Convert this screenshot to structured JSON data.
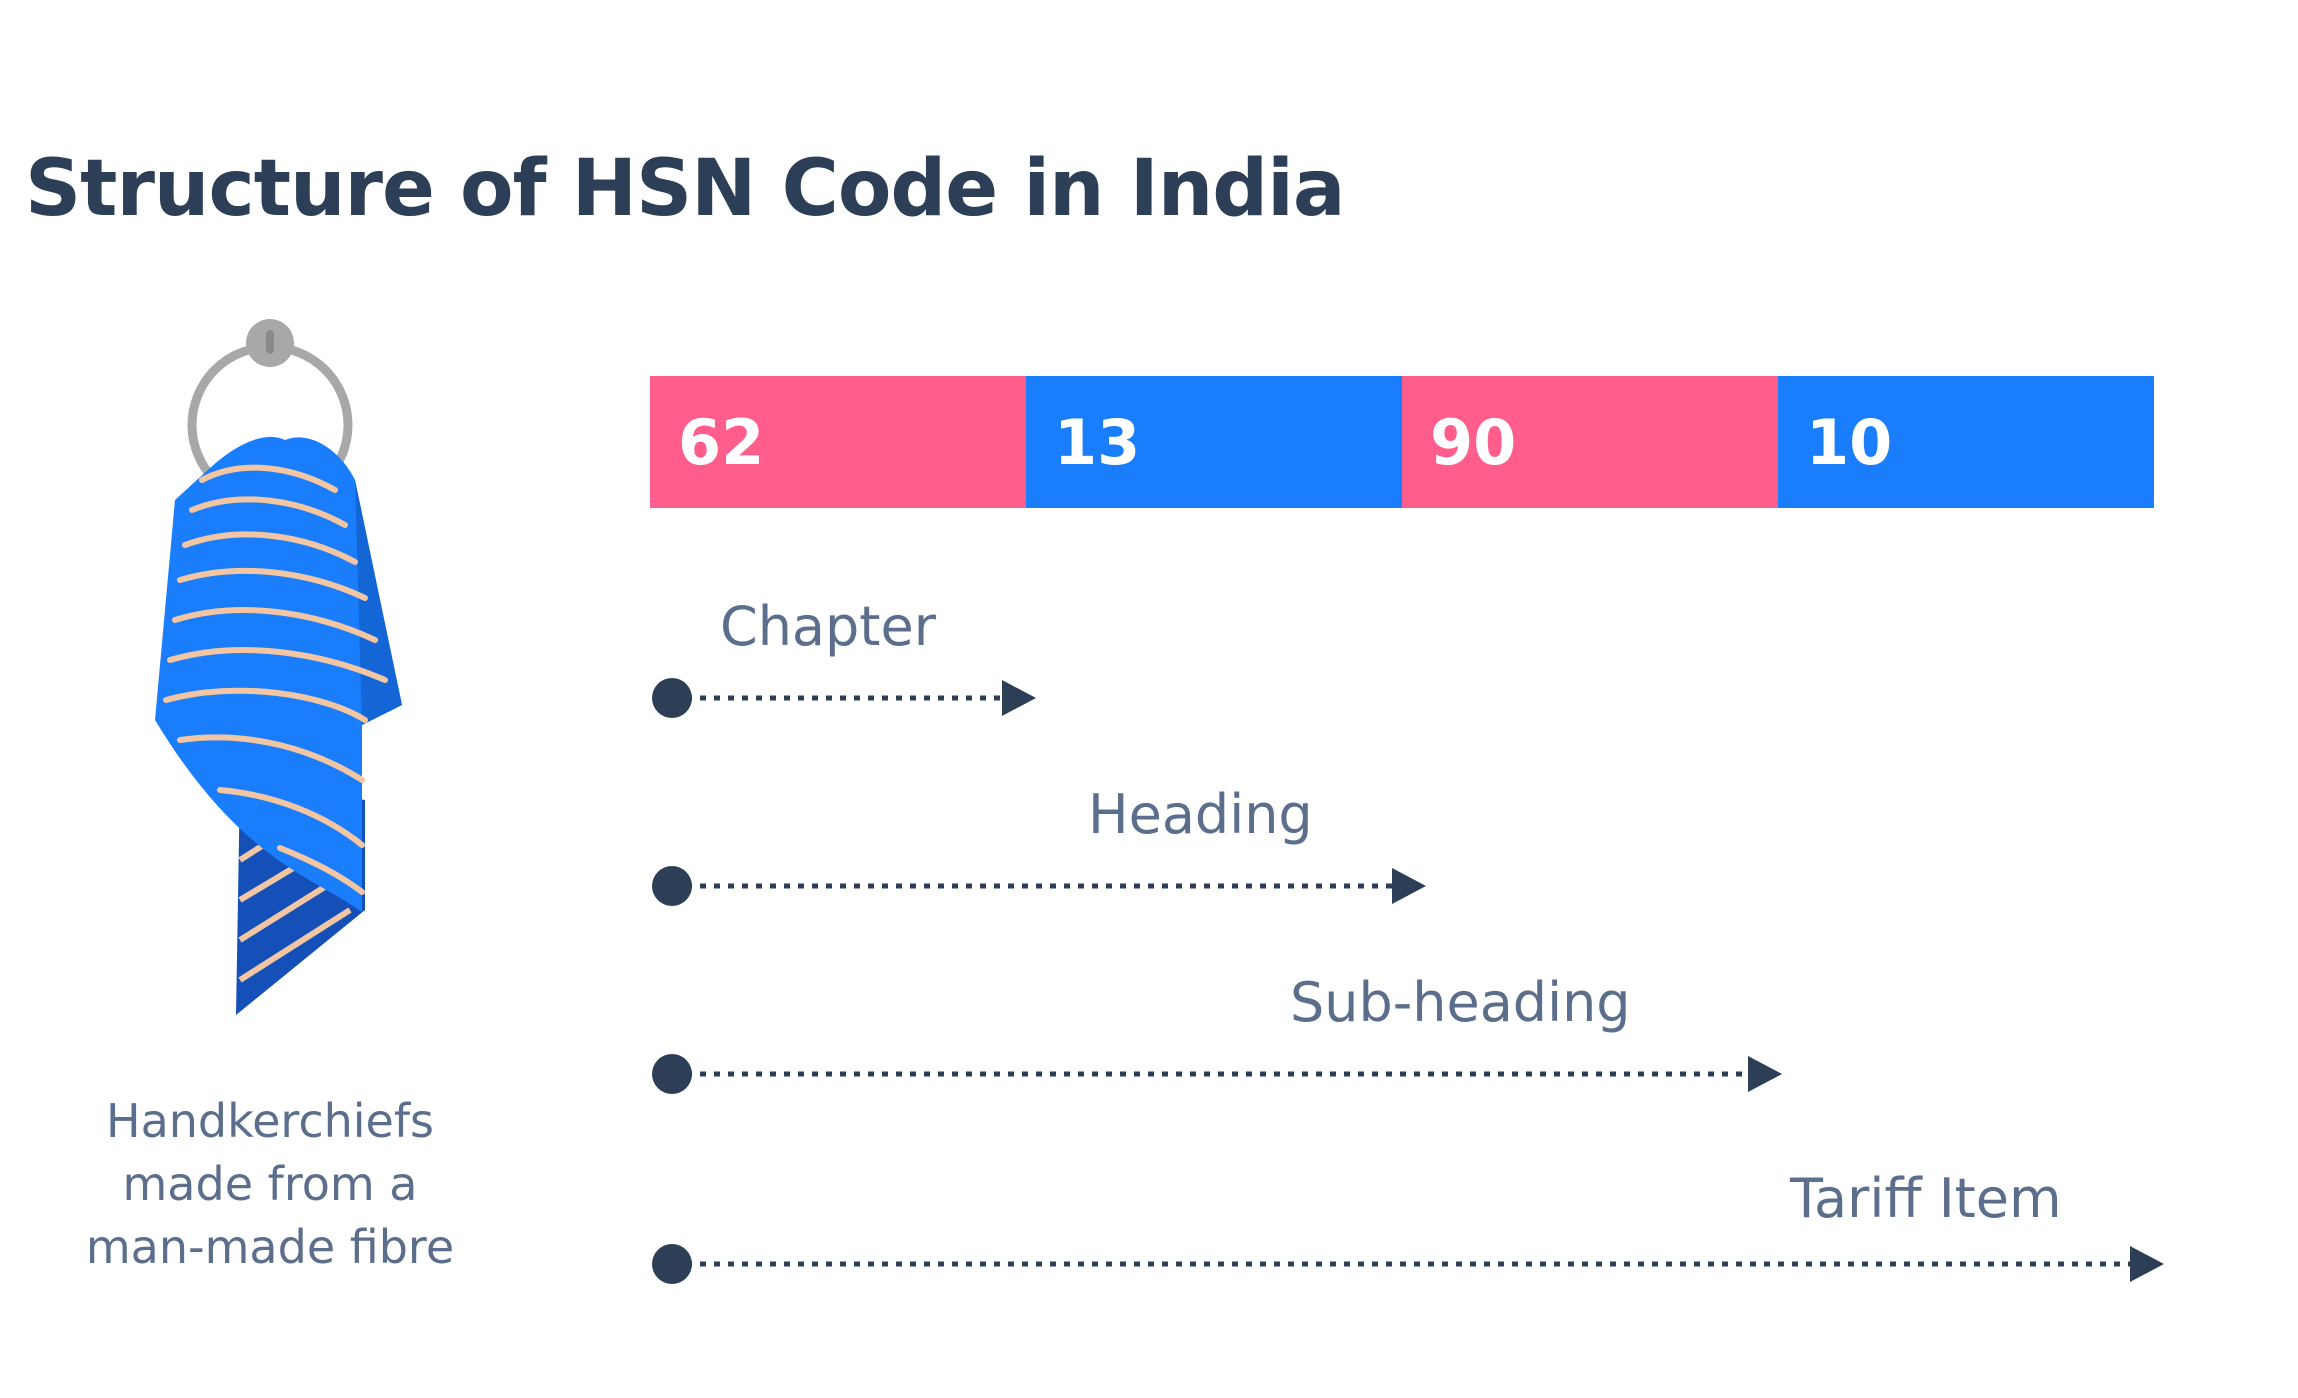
{
  "title": "Structure of HSN Code in India",
  "code_segments": [
    {
      "value": "62",
      "color": "#ff5e8c"
    },
    {
      "value": "13",
      "color": "#1a7dfc"
    },
    {
      "value": "90",
      "color": "#ff5e8c"
    },
    {
      "value": "10",
      "color": "#1a7dfc"
    }
  ],
  "levels": [
    {
      "label": "Chapter",
      "covers_segments": 1
    },
    {
      "label": "Heading",
      "covers_segments": 2
    },
    {
      "label": "Sub-heading",
      "covers_segments": 3
    },
    {
      "label": "Tariff Item",
      "covers_segments": 4
    }
  ],
  "illustration": {
    "icon": "handkerchief-icon",
    "caption_lines": [
      "Handkerchiefs",
      "made from a",
      "man-made fibre"
    ]
  },
  "colors": {
    "text_dark": "#2d3e57",
    "text_muted": "#5b6e8c",
    "pink": "#ff5e8c",
    "blue": "#1a7dfc"
  }
}
